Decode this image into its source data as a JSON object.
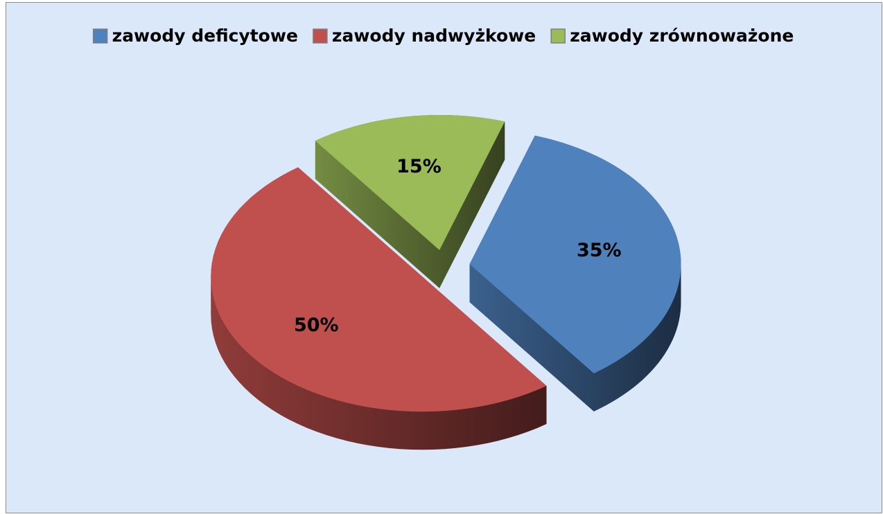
{
  "chart_data": {
    "type": "pie",
    "categories": [
      "zawody deficytowe",
      "zawody nadwyżkowe",
      "zawody zrównoważone"
    ],
    "values": [
      35,
      50,
      15
    ],
    "value_labels": [
      "35%",
      "50%",
      "15%"
    ],
    "colors": [
      "#4f81bd",
      "#c0504d",
      "#9bbb59"
    ],
    "legend": "top"
  }
}
